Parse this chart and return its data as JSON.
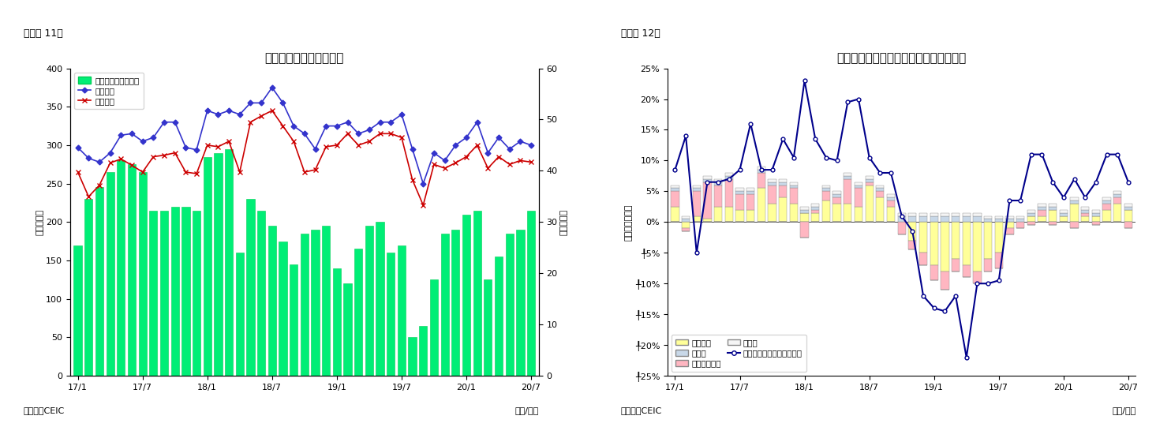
{
  "fig11": {
    "title": "シンガポール　貿易収支",
    "ylabel_left": "（億ドル）",
    "ylabel_right": "（億ドル）",
    "xlabel": "（年/月）",
    "source": "（資料）CEIC",
    "caption": "（図表 11）",
    "ylim_left": [
      0,
      400
    ],
    "ylim_right": [
      0,
      60
    ],
    "yticks_left": [
      0,
      50,
      100,
      150,
      200,
      250,
      300,
      350,
      400
    ],
    "yticks_right": [
      0,
      10,
      20,
      30,
      40,
      50,
      60
    ],
    "xtick_positions": [
      0,
      6,
      12,
      18,
      24,
      30,
      36,
      42
    ],
    "xtick_labels": [
      "17/1",
      "17/7",
      "18/1",
      "18/7",
      "19/1",
      "19/7",
      "20/1",
      "20/7"
    ],
    "bar_color": "#00EE76",
    "bar_edge_color": "#00CC55",
    "line1_color": "#3333CC",
    "line2_color": "#CC0000",
    "legend_labels": [
      "貿易収支（右目盛）",
      "総輸出額",
      "総輸入額"
    ],
    "trade_balance": [
      170,
      230,
      245,
      265,
      280,
      275,
      265,
      215,
      215,
      220,
      220,
      215,
      285,
      290,
      295,
      160,
      230,
      215,
      195,
      175,
      145,
      185,
      190,
      195,
      140,
      120,
      165,
      195,
      200,
      160,
      170,
      50,
      65,
      125,
      185,
      190,
      210,
      215,
      125,
      155,
      185,
      190,
      215
    ],
    "total_exports": [
      297,
      283,
      278,
      290,
      313,
      315,
      305,
      310,
      330,
      330,
      297,
      294,
      345,
      340,
      345,
      340,
      355,
      355,
      375,
      355,
      325,
      315,
      295,
      325,
      325,
      330,
      315,
      320,
      330,
      330,
      340,
      295,
      250,
      290,
      280,
      300,
      310,
      330,
      290,
      310,
      295,
      305,
      300
    ],
    "total_imports": [
      265,
      233,
      248,
      277,
      282,
      274,
      265,
      285,
      287,
      290,
      265,
      263,
      300,
      298,
      305,
      265,
      330,
      338,
      345,
      325,
      305,
      265,
      268,
      298,
      300,
      315,
      300,
      305,
      315,
      315,
      310,
      255,
      222,
      275,
      270,
      277,
      285,
      300,
      270,
      285,
      275,
      280,
      278
    ]
  },
  "fig12": {
    "title": "シンガポール　輸出の伸び率（品目別）",
    "ylabel_left": "（前年同期比）",
    "xlabel": "（年/月）",
    "source": "（資料）CEIC",
    "caption": "（図表 12）",
    "ylim": [
      -0.25,
      0.25
    ],
    "ytick_vals": [
      0.25,
      0.2,
      0.15,
      0.1,
      0.05,
      0.0,
      -0.05,
      -0.1,
      -0.15,
      -0.2,
      -0.25
    ],
    "ytick_labels": [
      "25%",
      "20%",
      "15%",
      "10%",
      "5%",
      "0%",
      "╀5%",
      "╀10%",
      "╀15%",
      "╀20%",
      "╀25%"
    ],
    "xtick_positions": [
      0,
      6,
      12,
      18,
      24,
      30,
      36,
      42
    ],
    "xtick_labels": [
      "17/1",
      "17/7",
      "18/1",
      "18/7",
      "19/1",
      "19/7",
      "20/1",
      "20/7"
    ],
    "color_electronics": "#FFFF99",
    "color_petroleum": "#FFB6C1",
    "color_pharma": "#C8D8E8",
    "color_other": "#F5F5F5",
    "color_line": "#00008B",
    "legend_labels": [
      "電子製品",
      "医薬品",
      "石油化学製品",
      "その他",
      "非石油輸出（再輸出除く）"
    ],
    "electronics": [
      0.025,
      -0.01,
      0.01,
      0.005,
      0.025,
      0.025,
      0.02,
      0.02,
      0.055,
      0.03,
      0.04,
      0.03,
      0.015,
      0.015,
      0.035,
      0.03,
      0.03,
      0.025,
      0.06,
      0.04,
      0.025,
      0.0,
      -0.03,
      -0.05,
      -0.07,
      -0.08,
      -0.06,
      -0.07,
      -0.08,
      -0.06,
      -0.05,
      -0.01,
      0.0,
      0.01,
      0.01,
      0.02,
      0.01,
      0.03,
      0.01,
      0.01,
      0.02,
      0.03,
      0.02
    ],
    "petroleum": [
      0.025,
      -0.005,
      0.04,
      0.06,
      0.035,
      0.045,
      0.025,
      0.025,
      0.025,
      0.03,
      0.02,
      0.025,
      -0.025,
      0.005,
      0.015,
      0.01,
      0.04,
      0.03,
      0.005,
      0.01,
      0.01,
      -0.02,
      -0.015,
      -0.02,
      -0.025,
      -0.03,
      -0.02,
      -0.02,
      -0.02,
      -0.02,
      -0.025,
      -0.01,
      -0.01,
      -0.005,
      0.01,
      -0.005,
      0.0,
      -0.01,
      0.005,
      -0.005,
      0.01,
      0.01,
      -0.01
    ],
    "pharma": [
      0.005,
      0.005,
      0.005,
      0.005,
      0.005,
      0.005,
      0.005,
      0.005,
      0.005,
      0.005,
      0.005,
      0.005,
      0.005,
      0.005,
      0.005,
      0.005,
      0.005,
      0.005,
      0.005,
      0.005,
      0.005,
      0.01,
      0.01,
      0.01,
      0.01,
      0.01,
      0.01,
      0.01,
      0.01,
      0.005,
      0.005,
      0.005,
      0.005,
      0.005,
      0.005,
      0.005,
      0.005,
      0.005,
      0.005,
      0.005,
      0.005,
      0.005,
      0.005
    ],
    "other": [
      0.005,
      0.005,
      0.005,
      0.005,
      0.005,
      0.005,
      0.005,
      0.005,
      0.005,
      0.005,
      0.005,
      0.005,
      0.005,
      0.005,
      0.005,
      0.005,
      0.005,
      0.005,
      0.005,
      0.005,
      0.005,
      0.005,
      0.005,
      0.005,
      0.005,
      0.005,
      0.005,
      0.005,
      0.005,
      0.005,
      0.005,
      0.005,
      0.005,
      0.005,
      0.005,
      0.005,
      0.005,
      0.005,
      0.005,
      0.005,
      0.005,
      0.005,
      0.005
    ],
    "non_oil_line": [
      0.085,
      0.14,
      -0.05,
      0.065,
      0.065,
      0.07,
      0.085,
      0.16,
      0.085,
      0.085,
      0.135,
      0.105,
      0.23,
      0.135,
      0.105,
      0.1,
      0.195,
      0.2,
      0.105,
      0.08,
      0.08,
      0.01,
      -0.015,
      -0.12,
      -0.14,
      -0.145,
      -0.12,
      -0.22,
      -0.1,
      -0.1,
      -0.095,
      0.035,
      0.035,
      0.11,
      0.11,
      0.065,
      0.04,
      0.07,
      0.04,
      0.065,
      0.11,
      0.11,
      0.065
    ]
  }
}
